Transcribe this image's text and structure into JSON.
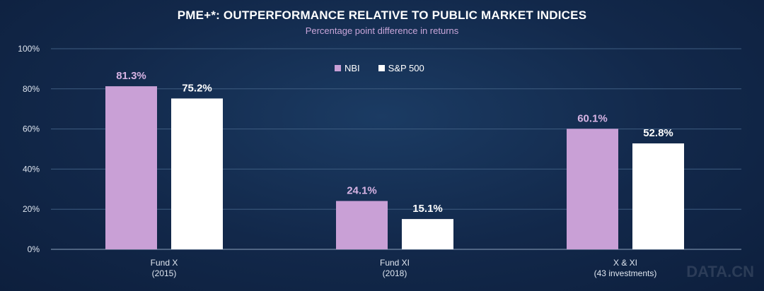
{
  "header": {
    "title": "PME+*: OUTPERFORMANCE RELATIVE TO PUBLIC MARKET INDICES",
    "subtitle": "Percentage point difference in returns"
  },
  "watermark": "DATA.CN",
  "colors": {
    "nbi": "#c9a0d6",
    "sp500": "#ffffff",
    "grid": "#3e5c80",
    "axis_text": "#dfe6f0",
    "nbi_label": "#d6b3e3",
    "sp500_label": "#ffffff"
  },
  "chart_data": {
    "type": "bar",
    "title": "PME+*: OUTPERFORMANCE RELATIVE TO PUBLIC MARKET INDICES",
    "subtitle": "Percentage point difference in returns",
    "categories": [
      [
        "Fund X",
        "(2015)"
      ],
      [
        "Fund XI",
        "(2018)"
      ],
      [
        "X & XI",
        "(43 investments)"
      ]
    ],
    "series": [
      {
        "name": "NBI",
        "values": [
          81.3,
          24.1,
          60.1
        ],
        "labels": [
          "81.3%",
          "24.1%",
          "60.1%"
        ]
      },
      {
        "name": "S&P 500",
        "values": [
          75.2,
          15.1,
          52.8
        ],
        "labels": [
          "75.2%",
          "15.1%",
          "52.8%"
        ]
      }
    ],
    "ylim": [
      0,
      100
    ],
    "yticks": [
      0,
      20,
      40,
      60,
      80,
      100
    ],
    "ytick_labels": [
      "0%",
      "20%",
      "40%",
      "60%",
      "80%",
      "100%"
    ],
    "grid": true,
    "legend_position": "top-center"
  }
}
